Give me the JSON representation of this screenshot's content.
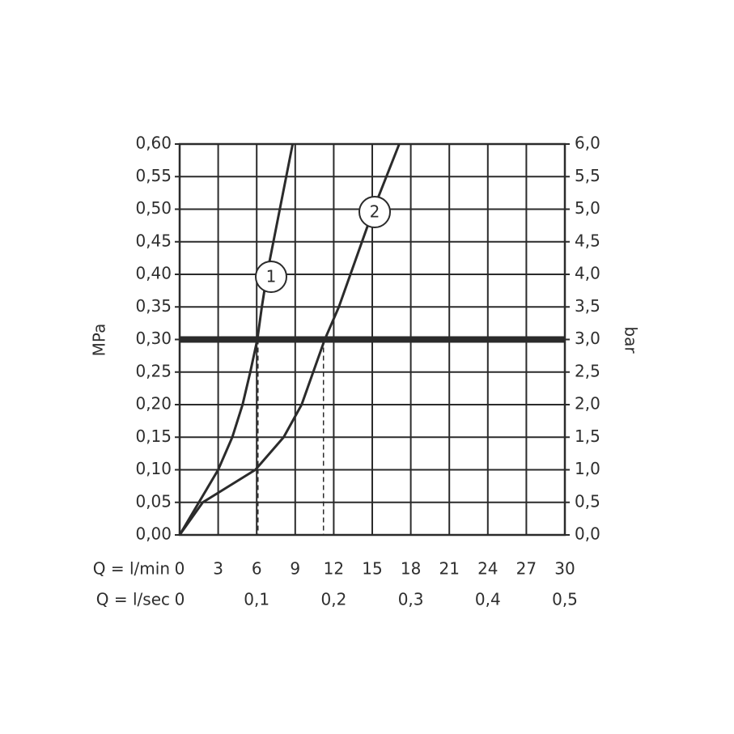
{
  "chart_data": {
    "type": "line",
    "y_label": "MPa",
    "y2_label": "bar",
    "x_label": "Q = l/min",
    "x2_label": "Q = l/sec",
    "xlim": [
      0,
      30
    ],
    "xticks": [
      0,
      3,
      6,
      9,
      12,
      15,
      18,
      21,
      24,
      27,
      30
    ],
    "x2lim": [
      0,
      0.5
    ],
    "x2ticks": [
      0,
      {
        "value": 0.1,
        "label": "0,1"
      },
      {
        "value": 0.2,
        "label": "0,2"
      },
      {
        "value": 0.3,
        "label": "0,3"
      },
      {
        "value": 0.4,
        "label": "0,4"
      },
      {
        "value": 0.5,
        "label": "0,5"
      }
    ],
    "ylim": [
      0,
      0.6
    ],
    "yticks": [
      {
        "value": 0,
        "label": "0,00"
      },
      {
        "value": 0.05,
        "label": "0,05"
      },
      {
        "value": 0.1,
        "label": "0,10"
      },
      {
        "value": 0.15,
        "label": "0,15"
      },
      {
        "value": 0.2,
        "label": "0,20"
      },
      {
        "value": 0.25,
        "label": "0,25"
      },
      {
        "value": 0.3,
        "label": "0,30"
      },
      {
        "value": 0.35,
        "label": "0,35"
      },
      {
        "value": 0.4,
        "label": "0,40"
      },
      {
        "value": 0.45,
        "label": "0,45"
      },
      {
        "value": 0.5,
        "label": "0,50"
      },
      {
        "value": 0.55,
        "label": "0,55"
      },
      {
        "value": 0.6,
        "label": "0,60"
      }
    ],
    "y2lim": [
      0,
      6
    ],
    "y2ticks": [
      {
        "value": 0,
        "label": "0,0"
      },
      {
        "value": 0.5,
        "label": "0,5"
      },
      {
        "value": 1,
        "label": "1,0"
      },
      {
        "value": 1.5,
        "label": "1,5"
      },
      {
        "value": 2,
        "label": "2,0"
      },
      {
        "value": 2.5,
        "label": "2,5"
      },
      {
        "value": 3,
        "label": "3,0"
      },
      {
        "value": 3.5,
        "label": "3,5"
      },
      {
        "value": 4,
        "label": "4,0"
      },
      {
        "value": 4.5,
        "label": "4,5"
      },
      {
        "value": 5,
        "label": "5,0"
      },
      {
        "value": 5.5,
        "label": "5,5"
      },
      {
        "value": 6,
        "label": "6,0"
      }
    ],
    "grid": true,
    "reference_lines": [
      0.3
    ],
    "drop_lines": [
      {
        "x": 6.1,
        "y": 0.3
      },
      {
        "x": 11.2,
        "y": 0.3
      }
    ],
    "series": [
      {
        "name": "1",
        "color": "#2b2b2b",
        "x": [
          0,
          3.0,
          4.1,
          4.9,
          5.5,
          6.05,
          6.4,
          6.8,
          7.3,
          7.8,
          8.3,
          8.8
        ],
        "values": [
          0,
          0.1,
          0.15,
          0.2,
          0.25,
          0.3,
          0.35,
          0.4,
          0.45,
          0.5,
          0.55,
          0.6
        ]
      },
      {
        "name": "2",
        "color": "#2b2b2b",
        "x": [
          0,
          1.8,
          5.9,
          8.1,
          9.5,
          10.4,
          11.3,
          12.4,
          13.3,
          14.2,
          15.1,
          16.1,
          17.1
        ],
        "values": [
          0,
          0.05,
          0.1,
          0.15,
          0.2,
          0.25,
          0.3,
          0.35,
          0.4,
          0.45,
          0.5,
          0.55,
          0.6
        ]
      }
    ]
  }
}
